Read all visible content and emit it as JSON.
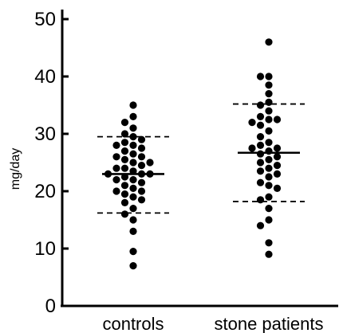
{
  "chart_data": {
    "type": "scatter",
    "title": "",
    "xlabel": "",
    "ylabel": "mg/day",
    "ylim": [
      0,
      50
    ],
    "yticks": [
      0,
      10,
      20,
      30,
      40,
      50
    ],
    "grid": false,
    "categories": [
      "controls",
      "stone patients"
    ],
    "series": [
      {
        "values": [
          35,
          33,
          32,
          31,
          30,
          29.5,
          29,
          28.5,
          28,
          28,
          27.5,
          27,
          26.5,
          26,
          26,
          25.5,
          25,
          25,
          24.5,
          24,
          24,
          23.5,
          23,
          23,
          23,
          22.5,
          22,
          22,
          21.5,
          21,
          20.5,
          20,
          20,
          19.5,
          19,
          18.5,
          18,
          17,
          16,
          15,
          13,
          9.5,
          7
        ],
        "mean": 23,
        "sd_upper": 29.5,
        "sd_lower": 16.2
      },
      {
        "values": [
          46,
          40,
          40,
          38.5,
          37,
          35.5,
          35,
          34,
          33,
          32.5,
          32.5,
          32,
          31.5,
          30.5,
          29.5,
          28.5,
          28,
          27.5,
          27.5,
          27,
          26.5,
          26,
          25.5,
          25,
          24.5,
          24,
          23.5,
          23,
          22.5,
          21.5,
          21,
          20.5,
          19,
          18.5,
          17,
          15,
          14,
          11,
          9
        ],
        "mean": 26.7,
        "sd_upper": 35.2,
        "sd_lower": 18.2
      }
    ]
  }
}
